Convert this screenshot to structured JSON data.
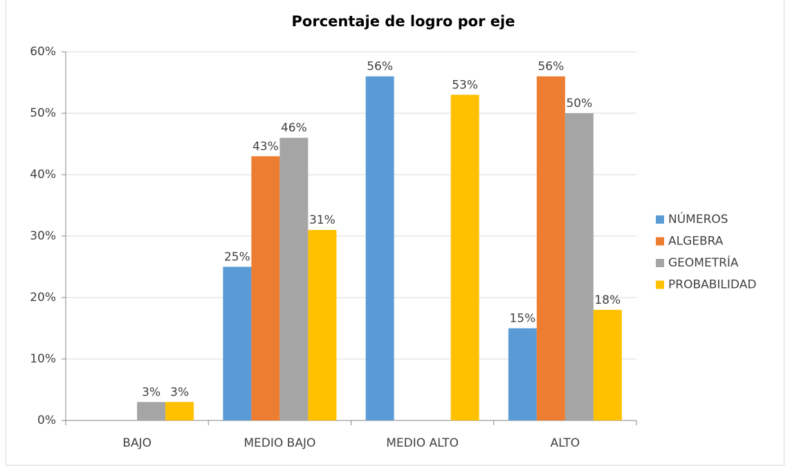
{
  "chart_data": {
    "type": "bar",
    "title": "Porcentaje de logro por eje",
    "categories": [
      "BAJO",
      "MEDIO BAJO",
      "MEDIO ALTO",
      "ALTO"
    ],
    "series": [
      {
        "name": "NÚMEROS",
        "color": "#5b9bd5",
        "values": [
          null,
          25,
          56,
          15
        ],
        "value_labels": [
          null,
          "25%",
          "56%",
          "15%"
        ]
      },
      {
        "name": "ALGEBRA",
        "color": "#ed7d31",
        "values": [
          null,
          43,
          null,
          56
        ],
        "value_labels": [
          null,
          "43%",
          null,
          "56%"
        ]
      },
      {
        "name": "GEOMETRÍA",
        "color": "#a5a5a5",
        "values": [
          3,
          46,
          null,
          50
        ],
        "value_labels": [
          "3%",
          "46%",
          null,
          "50%"
        ]
      },
      {
        "name": "PROBABILIDAD",
        "color": "#ffc000",
        "values": [
          3,
          31,
          53,
          18
        ],
        "value_labels": [
          "3%",
          "31%",
          "53%",
          "18%"
        ]
      }
    ],
    "ylim": [
      0,
      60
    ],
    "yticks": [
      {
        "value": 0,
        "label": "0%"
      },
      {
        "value": 10,
        "label": "10%"
      },
      {
        "value": 20,
        "label": "20%"
      },
      {
        "value": 30,
        "label": "30%"
      },
      {
        "value": 40,
        "label": "40%"
      },
      {
        "value": 50,
        "label": "50%"
      },
      {
        "value": 60,
        "label": "60%"
      }
    ],
    "grid": true,
    "legend": "right"
  }
}
